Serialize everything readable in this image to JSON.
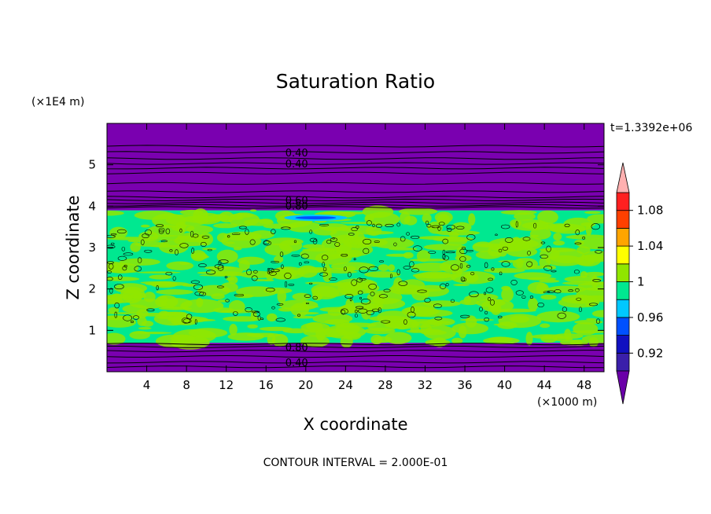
{
  "chart_data": {
    "type": "heatmap",
    "title": "Saturation Ratio",
    "xlabel": "X coordinate",
    "ylabel": "Z coordinate",
    "x_unit": "(×1000 m)",
    "y_unit": "(×1E4 m)",
    "time_label": "t=1.3392e+06",
    "footer": "CONTOUR INTERVAL = 2.000E-01",
    "xlim": [
      0,
      50
    ],
    "ylim": [
      0,
      6
    ],
    "x_ticks": [
      "4",
      "8",
      "12",
      "16",
      "20",
      "24",
      "28",
      "32",
      "36",
      "40",
      "44",
      "48"
    ],
    "x_tick_values": [
      4,
      8,
      12,
      16,
      20,
      24,
      28,
      32,
      36,
      40,
      44,
      48
    ],
    "y_ticks": [
      "1",
      "2",
      "3",
      "4",
      "5"
    ],
    "y_tick_values": [
      1,
      2,
      3,
      4,
      5
    ],
    "colorbar": {
      "colors": [
        "#6a00a8",
        "#3a1faa",
        "#1010c0",
        "#0050ff",
        "#00c8ff",
        "#00e890",
        "#90e600",
        "#ffff00",
        "#ffa500",
        "#ff4000",
        "#ff2020",
        "#ffb0b0"
      ],
      "labels": [
        "0.92",
        "0.96",
        "1",
        "1.04",
        "1.08"
      ],
      "label_values": [
        0.92,
        0.96,
        1.0,
        1.04,
        1.08
      ],
      "bounds": [
        0.9,
        1.1
      ]
    },
    "regions": [
      {
        "z_range": [
          0,
          0.7
        ],
        "value": "below 0.90",
        "color": "#7a00b0"
      },
      {
        "z_range": [
          0.7,
          3.9
        ],
        "value": "0.96–1.02",
        "color": "#00e890"
      },
      {
        "z_range": [
          3.9,
          6.0
        ],
        "value": "below 0.90",
        "color": "#7a00b0"
      }
    ],
    "contour_labels": [
      {
        "text": "0.40",
        "x": 17.5,
        "z": 5.3
      },
      {
        "text": "0.40",
        "x": 17.5,
        "z": 5.03
      },
      {
        "text": "0.60",
        "x": 17.5,
        "z": 4.15
      },
      {
        "text": "0.80",
        "x": 17.5,
        "z": 4.02
      },
      {
        "text": "0.80",
        "x": 17.5,
        "z": 0.6
      },
      {
        "text": "0.40",
        "x": 17.5,
        "z": 0.23
      }
    ],
    "contour_lines_z": [
      5.45,
      5.3,
      5.15,
      5.03,
      4.92,
      4.8,
      4.55,
      4.35,
      4.22,
      4.15,
      4.08,
      4.02,
      3.97,
      0.67,
      0.6,
      0.5,
      0.37,
      0.23,
      0.12
    ]
  }
}
